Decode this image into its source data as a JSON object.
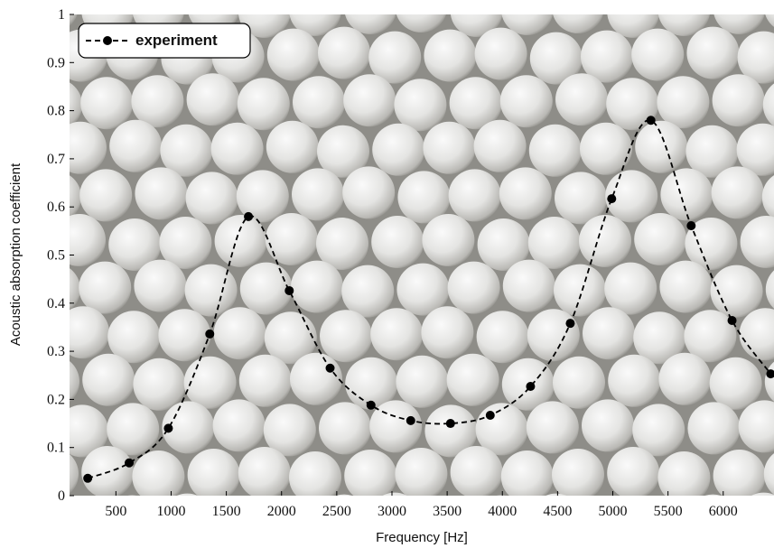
{
  "chart_data": {
    "type": "line",
    "xlabel": "Frequency [Hz]",
    "ylabel": "Acoustic absorption coefficient",
    "x": [
      245,
      620,
      975,
      1350,
      1700,
      2070,
      2440,
      2810,
      3170,
      3530,
      3890,
      4255,
      4615,
      4990,
      5345,
      5710,
      6080,
      6430
    ],
    "series": [
      {
        "name": "experiment",
        "color": "#000000",
        "values": [
          0.036,
          0.068,
          0.14,
          0.336,
          0.58,
          0.426,
          0.265,
          0.188,
          0.156,
          0.15,
          0.167,
          0.227,
          0.358,
          0.617,
          0.78,
          0.561,
          0.364,
          0.253
        ]
      }
    ],
    "xlim": [
      80,
      6460
    ],
    "ylim": [
      0,
      1
    ],
    "xticks": [
      500,
      1000,
      1500,
      2000,
      2500,
      3000,
      3500,
      4000,
      4500,
      5000,
      5500,
      6000
    ],
    "yticks": [
      0,
      {
        "value": 0.1,
        "label": "0.1"
      },
      {
        "value": 0.2,
        "label": "0.2"
      },
      {
        "value": 0.3,
        "label": "0.3"
      },
      {
        "value": 0.4,
        "label": "0.4"
      },
      {
        "value": 0.5,
        "label": "0.5"
      },
      {
        "value": 0.6,
        "label": "0.6"
      },
      {
        "value": 0.7,
        "label": "0.7"
      },
      {
        "value": 0.8,
        "label": "0.8"
      },
      {
        "value": 0.9,
        "label": "0.9"
      },
      1
    ],
    "legend": "upper left"
  }
}
